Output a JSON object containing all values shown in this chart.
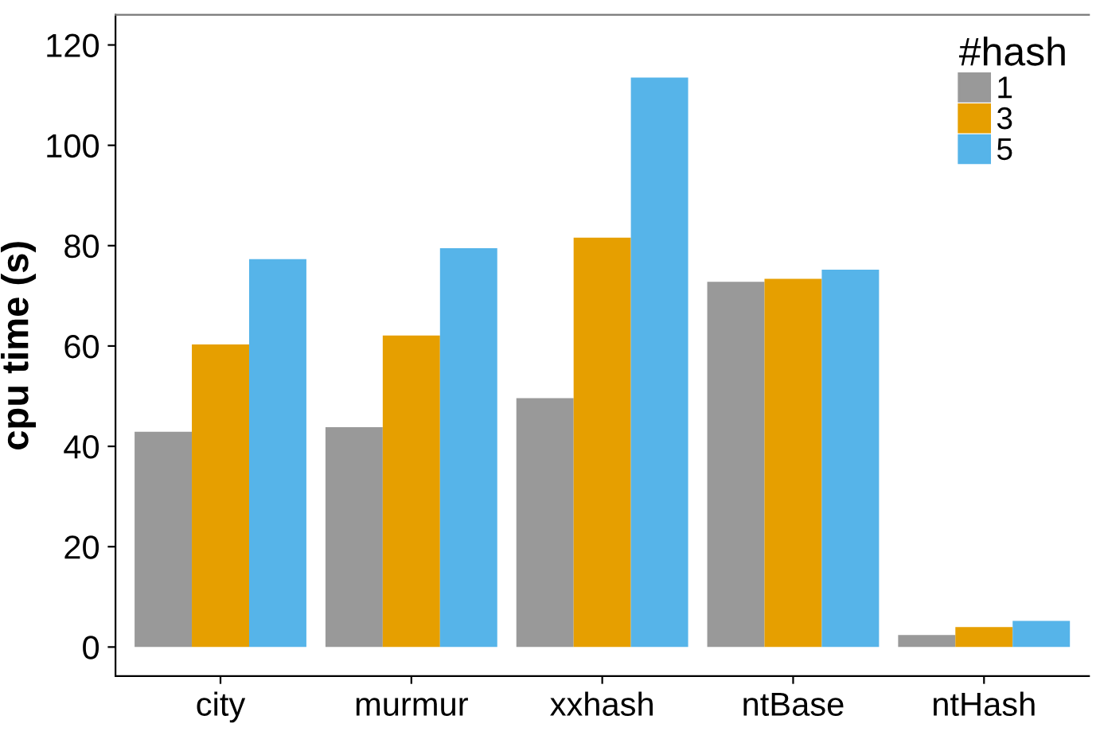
{
  "chart_data": {
    "type": "bar",
    "ylabel": "cpu time (s)",
    "legend_title": "#hash",
    "categories": [
      "city",
      "murmur",
      "xxhash",
      "ntBase",
      "ntHash"
    ],
    "series": [
      {
        "name": "1",
        "color": "#999999",
        "values": [
          42.9,
          43.8,
          49.6,
          72.8,
          2.4
        ]
      },
      {
        "name": "3",
        "color": "#e69f00",
        "values": [
          60.3,
          62.1,
          81.6,
          73.4,
          4.0
        ]
      },
      {
        "name": "5",
        "color": "#56b4e9",
        "values": [
          77.3,
          79.5,
          113.5,
          75.2,
          5.2
        ]
      }
    ],
    "ylim": [
      -5.8,
      126
    ],
    "yticks": [
      0,
      20,
      40,
      60,
      80,
      100,
      120
    ],
    "grid": false,
    "legend": "top right"
  }
}
